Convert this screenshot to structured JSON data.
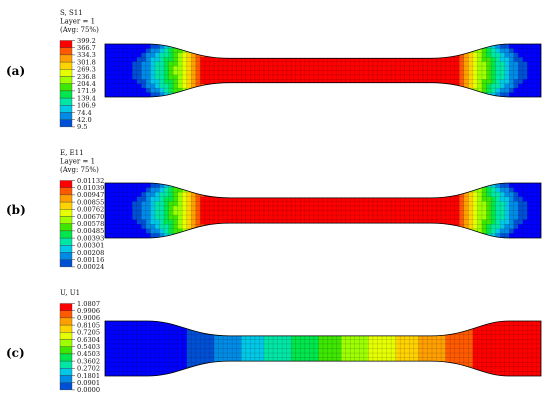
{
  "panels": [
    {
      "id": "a",
      "label": "(a)",
      "header": [
        "S, S11",
        "Layer = 1",
        "(Avg: 75%)"
      ],
      "legend_values": [
        "399.2",
        "366.7",
        "334.3",
        "301.8",
        "269.3",
        "236.8",
        "204.4",
        "171.9",
        "139.4",
        "106.9",
        "74.4",
        "42.0",
        "9.5"
      ],
      "field": "stress"
    },
    {
      "id": "b",
      "label": "(b)",
      "header": [
        "E, E11",
        "Layer = 1",
        "(Avg: 75%)"
      ],
      "legend_values": [
        "0.01132",
        "0.01039",
        "0.00947",
        "0.00855",
        "0.00762",
        "0.00670",
        "0.00578",
        "0.00485",
        "0.00393",
        "0.00301",
        "0.00208",
        "0.00116",
        "0.00024"
      ],
      "field": "strain"
    },
    {
      "id": "c",
      "label": "(c)",
      "header": [
        "U, U1"
      ],
      "legend_values": [
        "1.0807",
        "0.9906",
        "0.9006",
        "0.8105",
        "0.7205",
        "0.6304",
        "0.5403",
        "0.4503",
        "0.3602",
        "0.2702",
        "0.1801",
        "0.0901",
        "0.0000"
      ],
      "field": "displacement"
    }
  ],
  "colormap": [
    "#ff0000",
    "#ff5a00",
    "#ffa000",
    "#ffd300",
    "#e6ff00",
    "#9dff00",
    "#3ee700",
    "#00e64d",
    "#00e6a5",
    "#00c8e6",
    "#008be6",
    "#0050d6",
    "#0000ff"
  ]
}
